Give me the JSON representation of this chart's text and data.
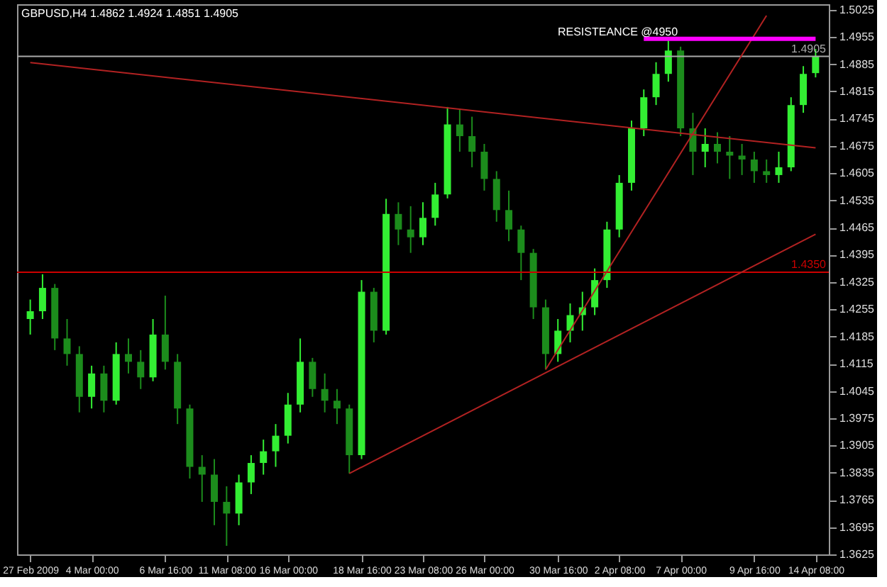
{
  "chart_data": {
    "type": "candlestick",
    "title": "GBPUSD,H4  1.4862 1.4924 1.4851 1.4905",
    "categories": [
      "27 Feb 2009",
      null,
      null,
      null,
      null,
      "4 Mar 00:00",
      null,
      null,
      null,
      null,
      null,
      "6 Mar 16:00",
      null,
      null,
      null,
      null,
      "11 Mar 08:00",
      null,
      null,
      null,
      null,
      "16 Mar 00:00",
      null,
      null,
      null,
      null,
      null,
      "18 Mar 16:00",
      null,
      null,
      null,
      null,
      "23 Mar 08:00",
      null,
      null,
      null,
      null,
      "26 Mar 00:00",
      null,
      null,
      null,
      null,
      null,
      "30 Mar 16:00",
      null,
      null,
      null,
      null,
      "2 Apr 08:00",
      null,
      null,
      null,
      null,
      "7 Apr 00:00",
      null,
      null,
      null,
      null,
      null,
      "9 Apr 16:00",
      null,
      null,
      null,
      null,
      "14 Apr 08:00"
    ],
    "ohlc": [
      [
        1.423,
        1.428,
        1.419,
        1.425
      ],
      [
        1.425,
        1.4345,
        1.423,
        1.431
      ],
      [
        1.431,
        1.432,
        1.415,
        1.418
      ],
      [
        1.418,
        1.423,
        1.411,
        1.414
      ],
      [
        1.414,
        1.416,
        1.399,
        1.403
      ],
      [
        1.403,
        1.411,
        1.4,
        1.409
      ],
      [
        1.409,
        1.411,
        1.399,
        1.402
      ],
      [
        1.402,
        1.417,
        1.401,
        1.414
      ],
      [
        1.414,
        1.418,
        1.409,
        1.412
      ],
      [
        1.412,
        1.415,
        1.405,
        1.408
      ],
      [
        1.408,
        1.423,
        1.407,
        1.419
      ],
      [
        1.419,
        1.429,
        1.41,
        1.412
      ],
      [
        1.412,
        1.414,
        1.396,
        1.4
      ],
      [
        1.4,
        1.401,
        1.382,
        1.385
      ],
      [
        1.385,
        1.388,
        1.376,
        1.383
      ],
      [
        1.383,
        1.387,
        1.37,
        1.376
      ],
      [
        1.376,
        1.38,
        1.3647,
        1.373
      ],
      [
        1.373,
        1.383,
        1.37,
        1.381
      ],
      [
        1.381,
        1.388,
        1.378,
        1.386
      ],
      [
        1.386,
        1.392,
        1.383,
        1.389
      ],
      [
        1.389,
        1.396,
        1.385,
        1.393
      ],
      [
        1.393,
        1.404,
        1.391,
        1.401
      ],
      [
        1.401,
        1.418,
        1.399,
        1.412
      ],
      [
        1.412,
        1.413,
        1.403,
        1.405
      ],
      [
        1.405,
        1.409,
        1.399,
        1.402
      ],
      [
        1.402,
        1.405,
        1.396,
        1.4
      ],
      [
        1.4,
        1.401,
        1.3833,
        1.388
      ],
      [
        1.388,
        1.433,
        1.387,
        1.43
      ],
      [
        1.43,
        1.431,
        1.417,
        1.42
      ],
      [
        1.42,
        1.4539,
        1.419,
        1.45
      ],
      [
        1.45,
        1.453,
        1.442,
        1.446
      ],
      [
        1.446,
        1.452,
        1.44,
        1.444
      ],
      [
        1.444,
        1.453,
        1.442,
        1.449
      ],
      [
        1.449,
        1.458,
        1.447,
        1.455
      ],
      [
        1.455,
        1.4775,
        1.454,
        1.473
      ],
      [
        1.473,
        1.477,
        1.466,
        1.47
      ],
      [
        1.47,
        1.475,
        1.462,
        1.466
      ],
      [
        1.466,
        1.468,
        1.456,
        1.459
      ],
      [
        1.459,
        1.461,
        1.448,
        1.451
      ],
      [
        1.451,
        1.456,
        1.443,
        1.446
      ],
      [
        1.446,
        1.447,
        1.433,
        1.44
      ],
      [
        1.44,
        1.441,
        1.423,
        1.426
      ],
      [
        1.426,
        1.428,
        1.41,
        1.414
      ],
      [
        1.414,
        1.423,
        1.412,
        1.42
      ],
      [
        1.42,
        1.427,
        1.417,
        1.424
      ],
      [
        1.424,
        1.43,
        1.42,
        1.426
      ],
      [
        1.426,
        1.436,
        1.424,
        1.433
      ],
      [
        1.433,
        1.448,
        1.431,
        1.446
      ],
      [
        1.446,
        1.46,
        1.444,
        1.458
      ],
      [
        1.458,
        1.474,
        1.456,
        1.472
      ],
      [
        1.472,
        1.482,
        1.47,
        1.48
      ],
      [
        1.48,
        1.489,
        1.478,
        1.486
      ],
      [
        1.486,
        1.4955,
        1.484,
        1.492
      ],
      [
        1.492,
        1.493,
        1.47,
        1.472
      ],
      [
        1.472,
        1.476,
        1.46,
        1.466
      ],
      [
        1.466,
        1.472,
        1.462,
        1.468
      ],
      [
        1.468,
        1.471,
        1.463,
        1.466
      ],
      [
        1.466,
        1.47,
        1.459,
        1.465
      ],
      [
        1.465,
        1.468,
        1.46,
        1.464
      ],
      [
        1.464,
        1.466,
        1.458,
        1.461
      ],
      [
        1.461,
        1.464,
        1.458,
        1.46
      ],
      [
        1.46,
        1.466,
        1.458,
        1.462
      ],
      [
        1.462,
        1.48,
        1.461,
        1.478
      ],
      [
        1.478,
        1.488,
        1.476,
        1.486
      ],
      [
        1.4862,
        1.4924,
        1.4851,
        1.4905
      ]
    ],
    "colors": [
      "#33ee33",
      "#33ee33",
      "#1c8c1c",
      "#1c8c1c",
      "#1c8c1c",
      "#33ee33",
      "#1c8c1c",
      "#33ee33",
      "#1c8c1c",
      "#1c8c1c",
      "#33ee33",
      "#1c8c1c",
      "#1c8c1c",
      "#1c8c1c",
      "#1c8c1c",
      "#1c8c1c",
      "#1c8c1c",
      "#33ee33",
      "#33ee33",
      "#33ee33",
      "#33ee33",
      "#33ee33",
      "#33ee33",
      "#1c8c1c",
      "#1c8c1c",
      "#1c8c1c",
      "#1c8c1c",
      "#33ee33",
      "#1c8c1c",
      "#33ee33",
      "#1c8c1c",
      "#1c8c1c",
      "#33ee33",
      "#33ee33",
      "#33ee33",
      "#1c8c1c",
      "#1c8c1c",
      "#1c8c1c",
      "#1c8c1c",
      "#1c8c1c",
      "#1c8c1c",
      "#1c8c1c",
      "#1c8c1c",
      "#33ee33",
      "#33ee33",
      "#33ee33",
      "#33ee33",
      "#33ee33",
      "#33ee33",
      "#33ee33",
      "#33ee33",
      "#33ee33",
      "#33ee33",
      "#1c8c1c",
      "#1c8c1c",
      "#33ee33",
      "#1c8c1c",
      "#1c8c1c",
      "#1c8c1c",
      "#1c8c1c",
      "#1c8c1c",
      "#33ee33",
      "#33ee33",
      "#33ee33",
      "#33ee33"
    ],
    "series": [
      {
        "type": "line",
        "color": "#b22222",
        "values": [
          1.4889,
          null,
          null,
          null,
          null,
          null,
          null,
          null,
          null,
          null,
          null,
          null,
          null,
          null,
          null,
          null,
          null,
          null,
          null,
          null,
          null,
          null,
          null,
          null,
          null,
          null,
          null,
          null,
          null,
          null,
          null,
          null,
          null,
          null,
          null,
          null,
          null,
          null,
          null,
          null,
          null,
          null,
          null,
          null,
          null,
          null,
          null,
          null,
          null,
          null,
          null,
          null,
          null,
          null,
          null,
          null,
          null,
          null,
          null,
          null,
          null,
          null,
          null,
          null,
          1.467
        ]
      },
      {
        "type": "line",
        "color": "#b22222",
        "values": [
          null,
          null,
          null,
          null,
          null,
          null,
          null,
          null,
          null,
          null,
          null,
          null,
          null,
          null,
          null,
          null,
          null,
          null,
          null,
          null,
          null,
          null,
          null,
          null,
          null,
          null,
          1.3833,
          null,
          null,
          null,
          null,
          null,
          null,
          null,
          null,
          null,
          null,
          null,
          null,
          null,
          null,
          null,
          null,
          null,
          null,
          null,
          null,
          null,
          null,
          null,
          null,
          null,
          null,
          null,
          null,
          null,
          null,
          null,
          null,
          null,
          null,
          null,
          null,
          null,
          1.4448
        ]
      },
      {
        "type": "line",
        "color": "#b22222",
        "values": [
          null,
          null,
          null,
          null,
          null,
          null,
          null,
          null,
          null,
          null,
          null,
          null,
          null,
          null,
          null,
          null,
          null,
          null,
          null,
          null,
          null,
          null,
          null,
          null,
          null,
          null,
          null,
          null,
          null,
          null,
          null,
          null,
          null,
          null,
          null,
          null,
          null,
          null,
          null,
          null,
          null,
          null,
          1.41,
          null,
          null,
          null,
          null,
          null,
          null,
          null,
          null,
          null,
          null,
          null,
          null,
          null,
          null,
          null,
          null,
          null,
          1.501,
          null,
          null,
          null,
          null
        ]
      },
      {
        "type": "line",
        "color": "#ff00ff",
        "values": [
          null,
          null,
          null,
          null,
          null,
          null,
          null,
          null,
          null,
          null,
          null,
          null,
          null,
          null,
          null,
          null,
          null,
          null,
          null,
          null,
          null,
          null,
          null,
          null,
          null,
          null,
          null,
          null,
          null,
          null,
          null,
          null,
          null,
          null,
          null,
          null,
          null,
          null,
          null,
          null,
          null,
          null,
          null,
          null,
          null,
          null,
          null,
          null,
          null,
          null,
          1.495,
          null,
          null,
          null,
          null,
          null,
          null,
          null,
          null,
          null,
          null,
          null,
          null,
          null,
          1.495
        ]
      }
    ],
    "ref_lines": [
      {
        "axis": "y",
        "value": 1.435,
        "label": "1.4350",
        "color": "#cc0000"
      },
      {
        "axis": "y",
        "value": 1.4905,
        "label": "1.4905",
        "color": "#aaaaaa"
      }
    ],
    "annotations": [
      "RESISTEANCE @4950"
    ],
    "ylim": [
      1.3625,
      1.5039
    ],
    "yticks": [
      1.5025,
      1.4955,
      1.4885,
      1.4815,
      1.4745,
      1.4675,
      1.4605,
      1.4535,
      1.4465,
      1.4395,
      1.4325,
      1.4255,
      1.4185,
      1.4115,
      1.4045,
      1.3975,
      1.3905,
      1.3835,
      1.3765,
      1.3695,
      1.3625
    ],
    "grid": false
  }
}
